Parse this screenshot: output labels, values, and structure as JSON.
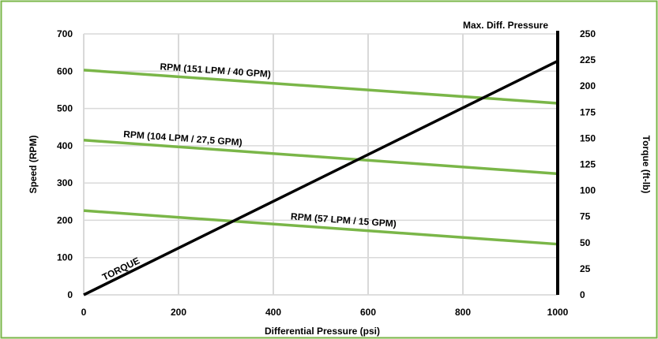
{
  "chart_data": {
    "type": "line",
    "title": "",
    "xlabel": "Differential Pressure (psi)",
    "ylabel": "Speed (RPM)",
    "y2label": "Torque (ft-lb)",
    "xlim": [
      0,
      1000
    ],
    "ylim": [
      0,
      700
    ],
    "y2lim": [
      0,
      250
    ],
    "xticks": [
      0,
      200,
      400,
      600,
      800,
      1000
    ],
    "yticks": [
      0,
      100,
      200,
      300,
      400,
      500,
      600,
      700
    ],
    "y2ticks": [
      0,
      25,
      50,
      75,
      100,
      125,
      150,
      175,
      200,
      225,
      250
    ],
    "grid": true,
    "legend": "none",
    "series": [
      {
        "name": "RPM (151 LPM / 40 GPM)",
        "axis": "left",
        "color": "#7ab648",
        "x": [
          0,
          1000
        ],
        "y": [
          603,
          514
        ]
      },
      {
        "name": "RPM (104 LPM / 27,5 GPM)",
        "axis": "left",
        "color": "#7ab648",
        "x": [
          0,
          1000
        ],
        "y": [
          415,
          325
        ]
      },
      {
        "name": "RPM (57 LPM / 15 GPM)",
        "axis": "left",
        "color": "#7ab648",
        "x": [
          0,
          1000
        ],
        "y": [
          226,
          136
        ]
      },
      {
        "name": "TORQUE",
        "axis": "right",
        "color": "#000000",
        "x": [
          0,
          1000
        ],
        "y": [
          0,
          224
        ]
      }
    ],
    "annotations": [
      {
        "text": "Max. Diff. Pressure",
        "x": 1000
      }
    ]
  },
  "colors": {
    "frame": "#7ab648",
    "grid": "#d9d9d9",
    "axis": "#000000"
  }
}
